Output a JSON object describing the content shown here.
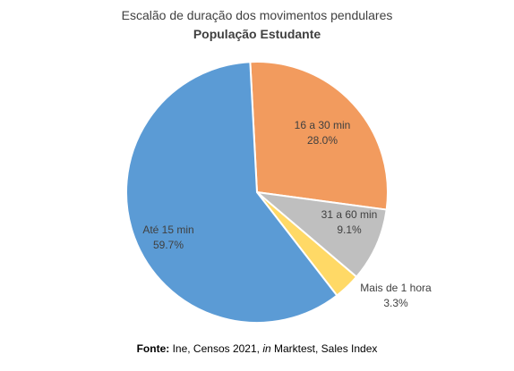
{
  "chart_data": {
    "type": "pie",
    "title": "Escalão de duração dos movimentos pendulares",
    "subtitle": "População Estudante",
    "slices": [
      {
        "label": "16 a 30 min",
        "value": 28.0,
        "value_label": "28.0%",
        "color": "#F29B5E"
      },
      {
        "label": "31 a 60 min",
        "value": 9.1,
        "value_label": "9.1%",
        "color": "#BFBFBF"
      },
      {
        "label": "Mais de 1 hora",
        "value": 3.3,
        "value_label": "3.3%",
        "color": "#FFD966"
      },
      {
        "label": "Até 15 min",
        "value": 59.7,
        "value_label": "59.7%",
        "color": "#5B9BD5"
      }
    ],
    "start_angle_deg": -3,
    "direction": "clockwise",
    "legend": "none"
  },
  "source": {
    "label": "Fonte:",
    "text_before": " Ine, Censos 2021, ",
    "italic": "in",
    "text_after": " Marktest, Sales Index"
  }
}
